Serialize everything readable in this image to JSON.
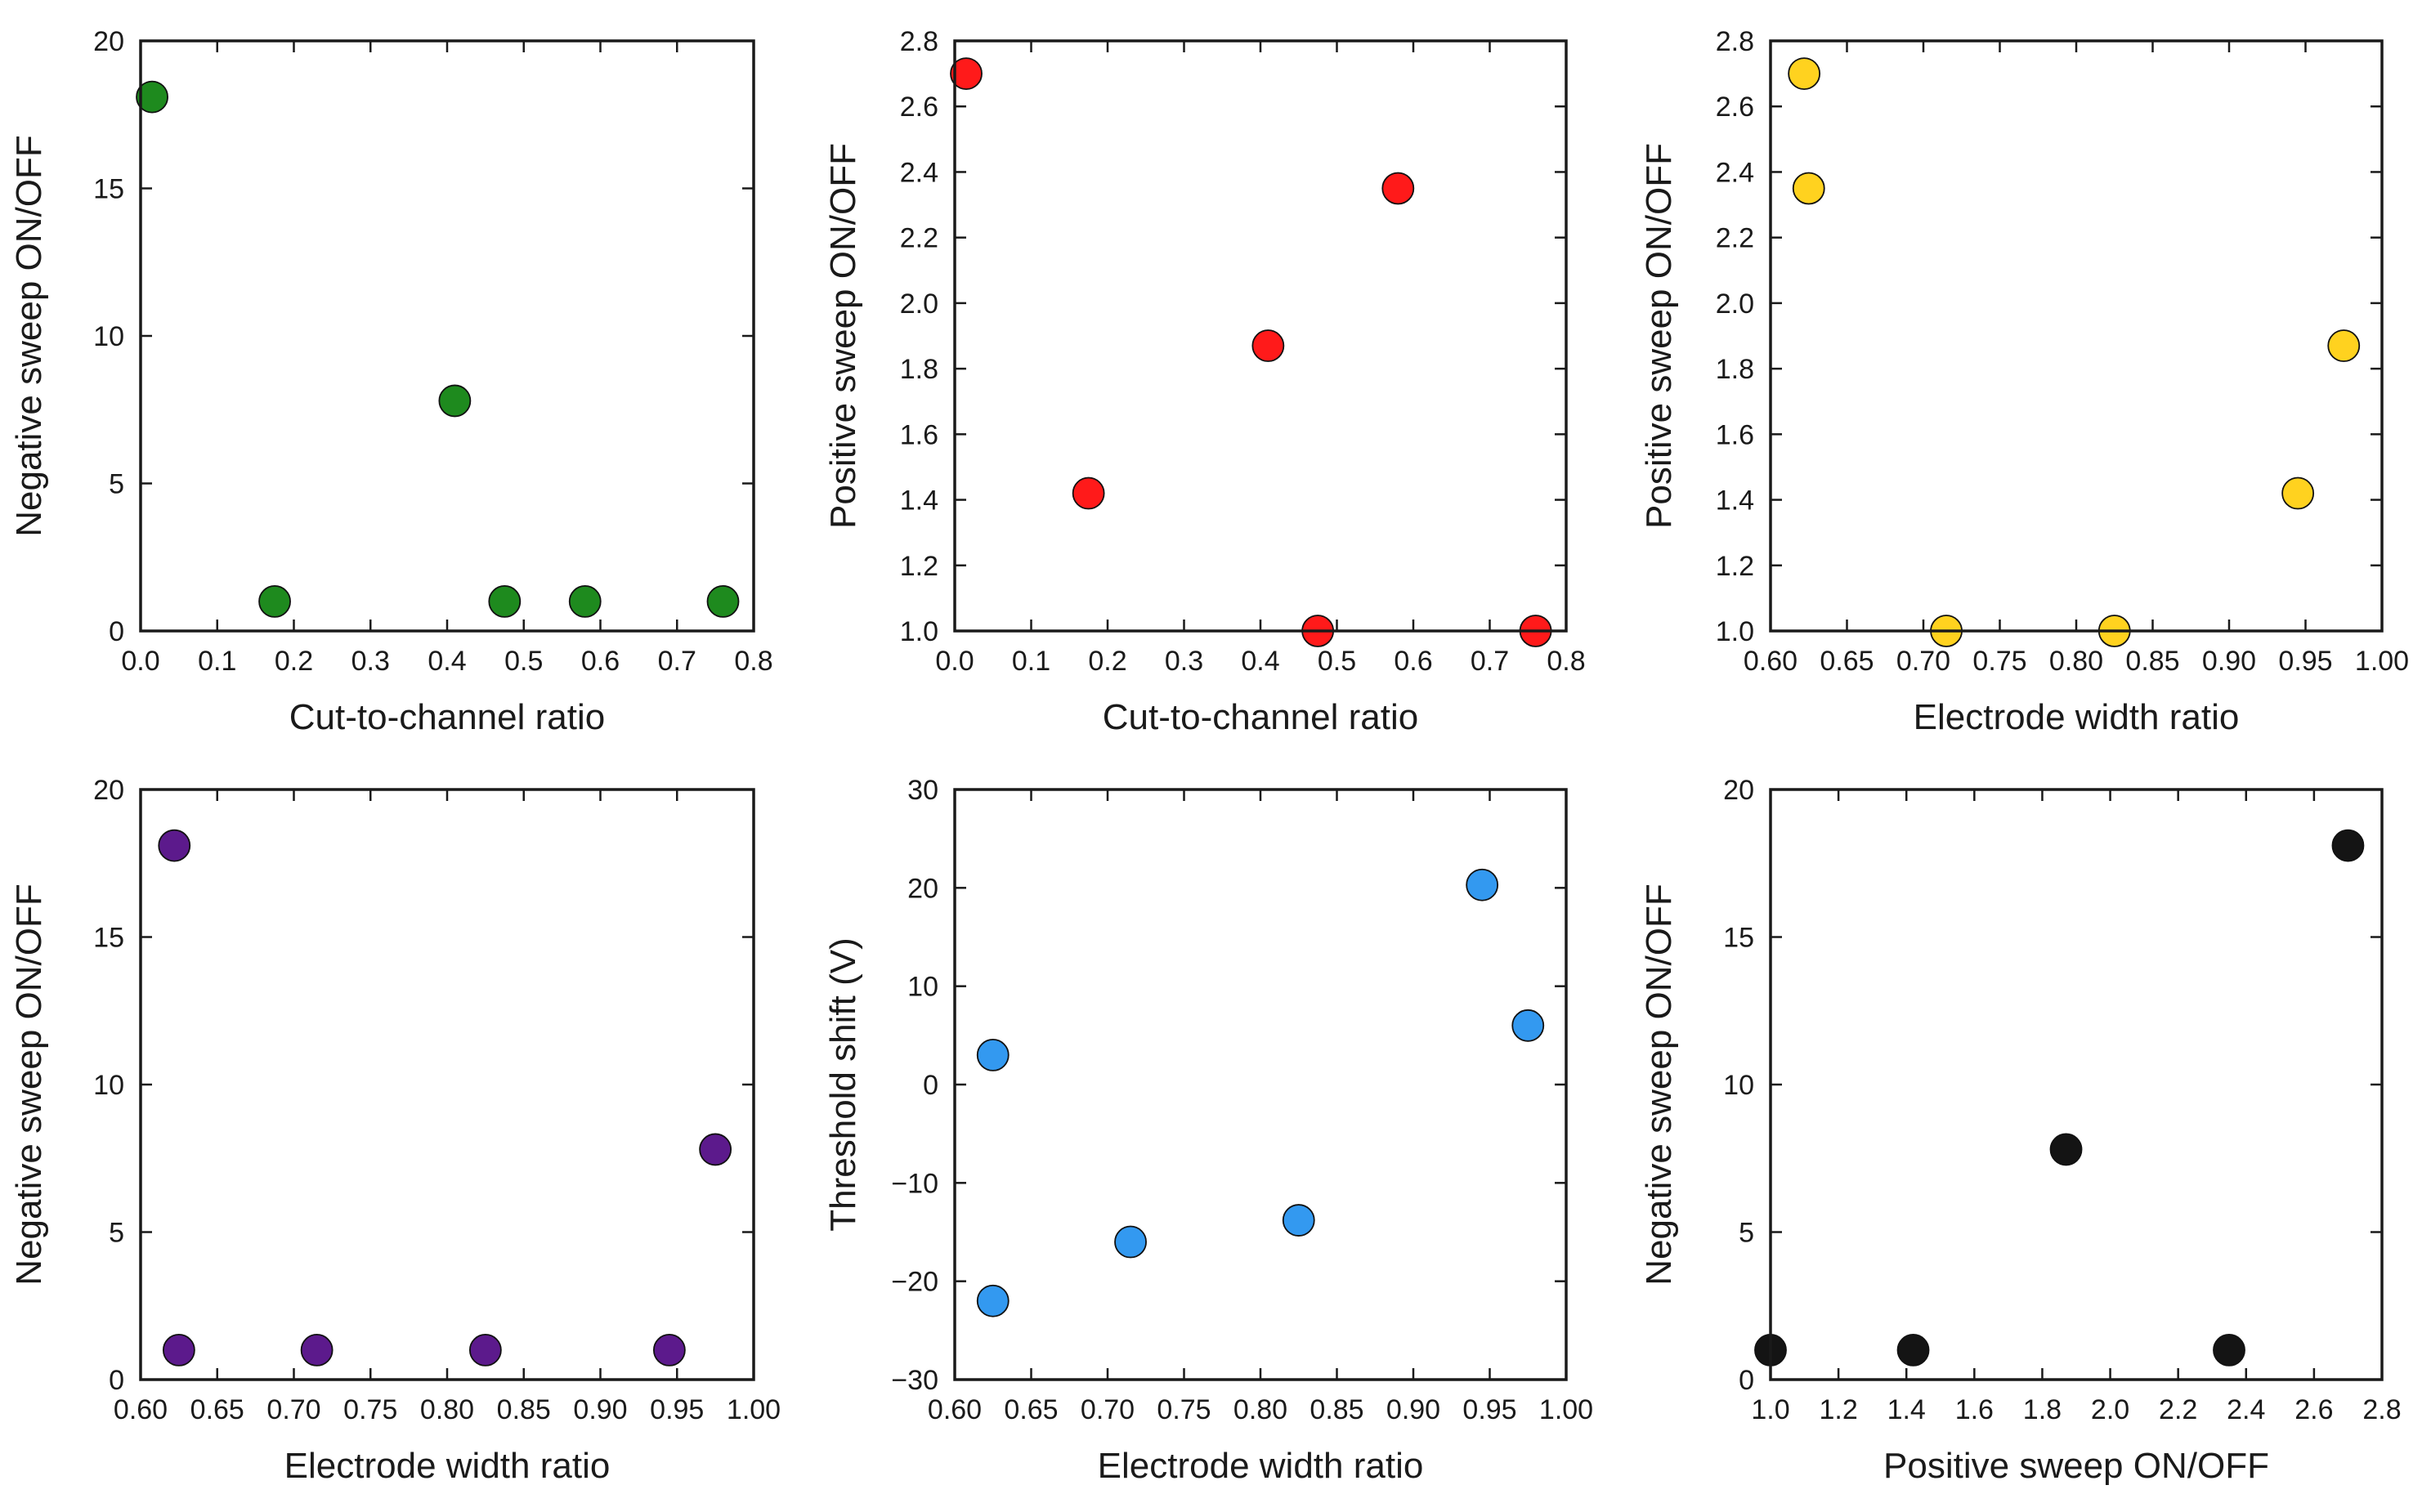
{
  "chart_data": [
    {
      "type": "scatter",
      "xlabel": "Cut-to-channel ratio",
      "ylabel": "Negative sweep ON/OFF",
      "xlim": [
        0.0,
        0.8
      ],
      "ylim": [
        0,
        20
      ],
      "xticks": [
        0.0,
        0.1,
        0.2,
        0.3,
        0.4,
        0.5,
        0.6,
        0.7,
        0.8
      ],
      "xtick_labels": [
        "0.0",
        "0.1",
        "0.2",
        "0.3",
        "0.4",
        "0.5",
        "0.6",
        "0.7",
        "0.8"
      ],
      "yticks": [
        0,
        5,
        10,
        15,
        20
      ],
      "ytick_labels": [
        "0",
        "5",
        "10",
        "15",
        "20"
      ],
      "color": "#1e8a1e",
      "x": [
        0.015,
        0.175,
        0.41,
        0.475,
        0.58,
        0.76
      ],
      "y": [
        18.1,
        1.0,
        7.8,
        1.0,
        1.0,
        1.0
      ]
    },
    {
      "type": "scatter",
      "xlabel": "Cut-to-channel ratio",
      "ylabel": "Positive sweep ON/OFF",
      "xlim": [
        0.0,
        0.8
      ],
      "ylim": [
        1.0,
        2.8
      ],
      "xticks": [
        0.0,
        0.1,
        0.2,
        0.3,
        0.4,
        0.5,
        0.6,
        0.7,
        0.8
      ],
      "xtick_labels": [
        "0.0",
        "0.1",
        "0.2",
        "0.3",
        "0.4",
        "0.5",
        "0.6",
        "0.7",
        "0.8"
      ],
      "yticks": [
        1.0,
        1.2,
        1.4,
        1.6,
        1.8,
        2.0,
        2.2,
        2.4,
        2.6,
        2.8
      ],
      "ytick_labels": [
        "1.0",
        "1.2",
        "1.4",
        "1.6",
        "1.8",
        "2.0",
        "2.2",
        "2.4",
        "2.6",
        "2.8"
      ],
      "color": "#ff1a1a",
      "x": [
        0.015,
        0.175,
        0.41,
        0.475,
        0.58,
        0.76
      ],
      "y": [
        2.7,
        1.42,
        1.87,
        1.0,
        2.35,
        1.0
      ]
    },
    {
      "type": "scatter",
      "xlabel": "Electrode width ratio",
      "ylabel": "Positive sweep ON/OFF",
      "xlim": [
        0.6,
        1.0
      ],
      "ylim": [
        1.0,
        2.8
      ],
      "xticks": [
        0.6,
        0.65,
        0.7,
        0.75,
        0.8,
        0.85,
        0.9,
        0.95,
        1.0
      ],
      "xtick_labels": [
        "0.60",
        "0.65",
        "0.70",
        "0.75",
        "0.80",
        "0.85",
        "0.90",
        "0.95",
        "1.00"
      ],
      "yticks": [
        1.0,
        1.2,
        1.4,
        1.6,
        1.8,
        2.0,
        2.2,
        2.4,
        2.6,
        2.8
      ],
      "ytick_labels": [
        "1.0",
        "1.2",
        "1.4",
        "1.6",
        "1.8",
        "2.0",
        "2.2",
        "2.4",
        "2.6",
        "2.8"
      ],
      "color": "#ffd21f",
      "x": [
        0.622,
        0.625,
        0.715,
        0.825,
        0.945,
        0.975
      ],
      "y": [
        2.7,
        2.35,
        1.0,
        1.0,
        1.42,
        1.87
      ]
    },
    {
      "type": "scatter",
      "xlabel": "Electrode width ratio",
      "ylabel": "Negative sweep ON/OFF",
      "xlim": [
        0.6,
        1.0
      ],
      "ylim": [
        0,
        20
      ],
      "xticks": [
        0.6,
        0.65,
        0.7,
        0.75,
        0.8,
        0.85,
        0.9,
        0.95,
        1.0
      ],
      "xtick_labels": [
        "0.60",
        "0.65",
        "0.70",
        "0.75",
        "0.80",
        "0.85",
        "0.90",
        "0.95",
        "1.00"
      ],
      "yticks": [
        0,
        5,
        10,
        15,
        20
      ],
      "ytick_labels": [
        "0",
        "5",
        "10",
        "15",
        "20"
      ],
      "color": "#5c1a8c",
      "x": [
        0.622,
        0.625,
        0.715,
        0.825,
        0.945,
        0.975
      ],
      "y": [
        18.1,
        1.0,
        1.0,
        1.0,
        1.0,
        7.8
      ]
    },
    {
      "type": "scatter",
      "xlabel": "Electrode width ratio",
      "ylabel": "Threshold shift (V)",
      "xlim": [
        0.6,
        1.0
      ],
      "ylim": [
        -30,
        30
      ],
      "xticks": [
        0.6,
        0.65,
        0.7,
        0.75,
        0.8,
        0.85,
        0.9,
        0.95,
        1.0
      ],
      "xtick_labels": [
        "0.60",
        "0.65",
        "0.70",
        "0.75",
        "0.80",
        "0.85",
        "0.90",
        "0.95",
        "1.00"
      ],
      "yticks": [
        -30,
        -20,
        -10,
        0,
        10,
        20,
        30
      ],
      "ytick_labels": [
        "−30",
        "−20",
        "−10",
        "0",
        "10",
        "20",
        "30"
      ],
      "color": "#3399f0",
      "x": [
        0.625,
        0.625,
        0.715,
        0.825,
        0.945,
        0.975
      ],
      "y": [
        3.0,
        -22.0,
        -16.0,
        -13.8,
        20.3,
        6.0
      ]
    },
    {
      "type": "scatter",
      "xlabel": "Positive sweep ON/OFF",
      "ylabel": "Negative sweep ON/OFF",
      "xlim": [
        1.0,
        2.8
      ],
      "ylim": [
        0,
        20
      ],
      "xticks": [
        1.0,
        1.2,
        1.4,
        1.6,
        1.8,
        2.0,
        2.2,
        2.4,
        2.6,
        2.8
      ],
      "xtick_labels": [
        "1.0",
        "1.2",
        "1.4",
        "1.6",
        "1.8",
        "2.0",
        "2.2",
        "2.4",
        "2.6",
        "2.8"
      ],
      "yticks": [
        0,
        5,
        10,
        15,
        20
      ],
      "ytick_labels": [
        "0",
        "5",
        "10",
        "15",
        "20"
      ],
      "color": "#141414",
      "x": [
        1.0,
        1.42,
        1.87,
        2.35,
        2.7
      ],
      "y": [
        1.0,
        1.0,
        7.8,
        1.0,
        18.1
      ]
    }
  ]
}
